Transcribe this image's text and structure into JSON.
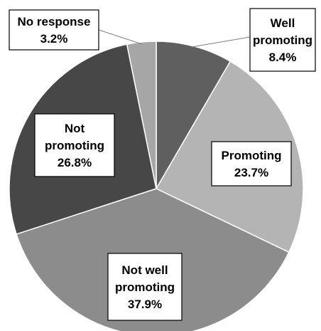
{
  "chart_data": {
    "type": "pie",
    "title": "",
    "start_angle_deg": 0,
    "direction": "clockwise",
    "slices": [
      {
        "name": "Well promoting",
        "value": 8.4,
        "label_lines": [
          "Well",
          "promoting"
        ],
        "value_label": "8.4%",
        "color": "#5f5f5f"
      },
      {
        "name": "Promoting",
        "value": 23.7,
        "label_lines": [
          "Promoting"
        ],
        "value_label": "23.7%",
        "color": "#b4b4b4"
      },
      {
        "name": "Not well promoting",
        "value": 37.9,
        "label_lines": [
          "Not well",
          "promoting"
        ],
        "value_label": "37.9%",
        "color": "#8c8c8c"
      },
      {
        "name": "Not promoting",
        "value": 26.8,
        "label_lines": [
          "Not",
          "promoting"
        ],
        "value_label": "26.8%",
        "color": "#474747"
      },
      {
        "name": "No response",
        "value": 3.2,
        "label_lines": [
          "No response"
        ],
        "value_label": "3.2%",
        "color": "#a6a6a6"
      }
    ]
  }
}
